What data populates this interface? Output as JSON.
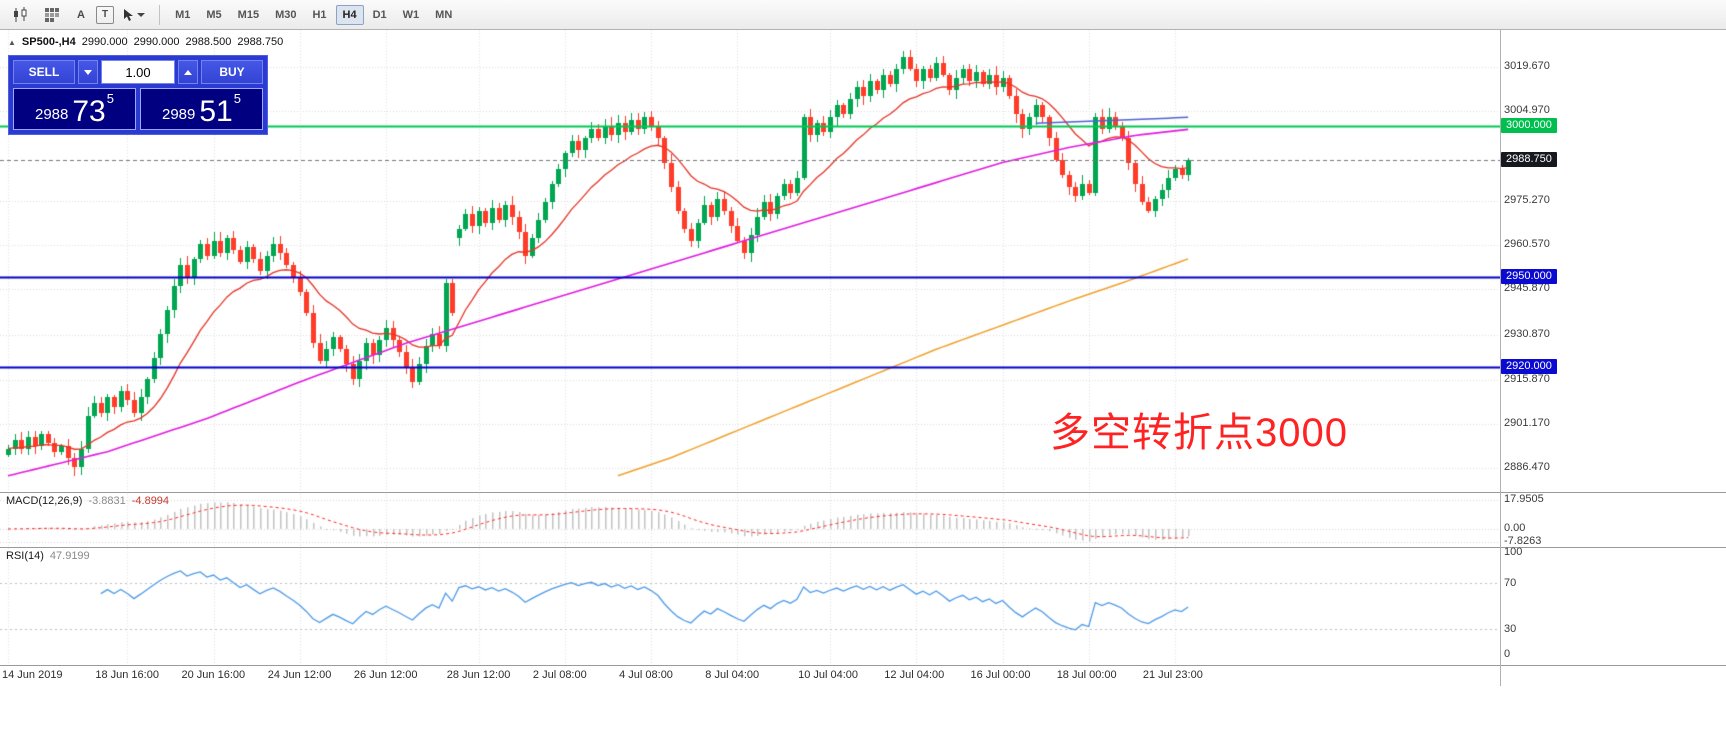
{
  "toolbar": {
    "icon_a_label": "A",
    "icon_t_label": "T",
    "timeframes": [
      "M1",
      "M5",
      "M15",
      "M30",
      "H1",
      "H4",
      "D1",
      "W1",
      "MN"
    ],
    "active_timeframe": "H4"
  },
  "chart": {
    "symbol_info": {
      "symbol": "SP500-,H4",
      "open": "2990.000",
      "high": "2990.000",
      "low": "2988.500",
      "close": "2988.750"
    },
    "trade_panel": {
      "sell_label": "SELL",
      "buy_label": "BUY",
      "volume": "1.00",
      "sell_price": {
        "prefix": "2988",
        "main": "73",
        "sup": "5"
      },
      "buy_price": {
        "prefix": "2989",
        "main": "51",
        "sup": "5"
      }
    },
    "annotation": {
      "text": "多空转折点3000",
      "color": "#ff2222"
    }
  },
  "macd_panel": {
    "title": "MACD(12,26,9)",
    "value1": "-3.8831",
    "value2": "-4.8994",
    "axis": [
      {
        "t": "17.9505",
        "v": 17.9505
      },
      {
        "t": "0.00",
        "v": 0
      },
      {
        "t": "-7.8263",
        "v": -7.8263
      }
    ]
  },
  "rsi_panel": {
    "title": "RSI(14)",
    "value": "47.9199",
    "axis": [
      {
        "t": "100",
        "v": 100
      },
      {
        "t": "70",
        "v": 70
      },
      {
        "t": "30",
        "v": 30
      },
      {
        "t": "0",
        "v": 0
      }
    ]
  },
  "chart_data": {
    "type": "candlestick",
    "symbol": "SP500-",
    "timeframe": "H4",
    "closes": [
      2893,
      2896,
      2893,
      2897,
      2894,
      2898,
      2895,
      2892,
      2894,
      2890,
      2887,
      2893,
      2904,
      2908,
      2905,
      2910,
      2907,
      2912,
      2909,
      2905,
      2910,
      2916,
      2923,
      2931,
      2939,
      2947,
      2954,
      2950,
      2956,
      2961,
      2957,
      2962,
      2958,
      2963,
      2959,
      2955,
      2960,
      2956,
      2952,
      2957,
      2961,
      2958,
      2954,
      2950,
      2945,
      2938,
      2928,
      2922,
      2926,
      2930,
      2926,
      2921,
      2916,
      2922,
      2928,
      2924,
      2929,
      2933,
      2929,
      2925,
      2920,
      2915,
      2921,
      2927,
      2931,
      2927,
      2948,
      2938,
      2966,
      2971,
      2967,
      2972,
      2968,
      2973,
      2969,
      2974,
      2970,
      2965,
      2957,
      2963,
      2969,
      2975,
      2981,
      2986,
      2991,
      2995,
      2992,
      2996,
      2999,
      2996,
      3000,
      2997,
      3001,
      2998,
      3002,
      2999,
      3003,
      3000,
      2996,
      2988,
      2980,
      2972,
      2966,
      2962,
      2968,
      2974,
      2970,
      2976,
      2972,
      2967,
      2962,
      2958,
      2964,
      2970,
      2975,
      2971,
      2977,
      2981,
      2978,
      2983,
      3003,
      2997,
      3001,
      2998,
      3003,
      3007,
      3004,
      3009,
      3013,
      3010,
      3015,
      3012,
      3017,
      3014,
      3019,
      3023,
      3019,
      3015,
      3019,
      3016,
      3021,
      3017,
      3012,
      3016,
      3019,
      3015,
      3018,
      3014,
      3017,
      3013,
      3016,
      3010,
      3004,
      2999,
      3003,
      3007,
      3003,
      2996,
      2989,
      2984,
      2980,
      2977,
      2981,
      2978,
      3003,
      2999,
      3003,
      3000,
      2996,
      2988,
      2981,
      2975,
      2972,
      2976,
      2979,
      2983,
      2986,
      2984,
      2988.75
    ],
    "open_overrides": {
      "68": 2963
    },
    "candle_colors": {
      "up": "#00a651",
      "down": "#ff3c28"
    },
    "time_axis": [
      {
        "label": "14 Jun 2019",
        "i": 0
      },
      {
        "label": "18 Jun 16:00",
        "i": 18
      },
      {
        "label": "20 Jun 16:00",
        "i": 31
      },
      {
        "label": "24 Jun 12:00",
        "i": 44
      },
      {
        "label": "26 Jun 12:00",
        "i": 57
      },
      {
        "label": "28 Jun 12:00",
        "i": 71
      },
      {
        "label": "2 Jul 08:00",
        "i": 84
      },
      {
        "label": "4 Jul 08:00",
        "i": 97
      },
      {
        "label": "8 Jul 04:00",
        "i": 110
      },
      {
        "label": "10 Jul 04:00",
        "i": 124
      },
      {
        "label": "12 Jul 04:00",
        "i": 137
      },
      {
        "label": "16 Jul 00:00",
        "i": 150
      },
      {
        "label": "18 Jul 00:00",
        "i": 163
      },
      {
        "label": "21 Jul 23:00",
        "i": 176
      }
    ],
    "price_axis": {
      "labels": [
        {
          "t": "3019.670",
          "p": 3019.67
        },
        {
          "t": "3004.970",
          "p": 3004.97
        },
        {
          "t": "2975.270",
          "p": 2975.27
        },
        {
          "t": "2960.570",
          "p": 2960.57
        },
        {
          "t": "2945.870",
          "p": 2945.87
        },
        {
          "t": "2930.870",
          "p": 2930.87
        },
        {
          "t": "2915.870",
          "p": 2915.87
        },
        {
          "t": "2901.170",
          "p": 2901.17
        },
        {
          "t": "2886.470",
          "p": 2886.47
        }
      ],
      "badges": [
        {
          "t": "3000.000",
          "p": 3000,
          "bg": "#00bf4e"
        },
        {
          "t": "2988.750",
          "p": 2988.75,
          "bg": "#15181f"
        },
        {
          "t": "2950.000",
          "p": 2950,
          "bg": "#0a0ad0"
        },
        {
          "t": "2920.000",
          "p": 2920,
          "bg": "#0a0ad0"
        }
      ]
    },
    "hlines": [
      {
        "price": 3000,
        "color": "#00c853",
        "width": 2
      },
      {
        "price": 2950,
        "color": "#0000c8",
        "width": 2
      },
      {
        "price": 2920,
        "color": "#0000c8",
        "width": 2
      }
    ],
    "current_price": {
      "price": 2988.75,
      "label": "2988.750"
    },
    "ma_lines": [
      {
        "name": "fast-ma",
        "color": "#e53528",
        "kind": "ema",
        "period": 16,
        "width": 1.3
      },
      {
        "name": "mid-ma",
        "color": "#df1edf",
        "kind": "ctrl",
        "width": 1.6,
        "points": [
          [
            0,
            2884
          ],
          [
            15,
            2892
          ],
          [
            30,
            2903
          ],
          [
            45,
            2916
          ],
          [
            60,
            2928
          ],
          [
            75,
            2938
          ],
          [
            90,
            2948
          ],
          [
            105,
            2958
          ],
          [
            120,
            2968
          ],
          [
            135,
            2978
          ],
          [
            150,
            2988
          ],
          [
            160,
            2993
          ],
          [
            170,
            2997
          ],
          [
            178,
            2999
          ]
        ]
      },
      {
        "name": "slow-ma",
        "color": "#f0a22e",
        "kind": "ctrl",
        "width": 1.5,
        "points": [
          [
            92,
            2884
          ],
          [
            100,
            2890
          ],
          [
            110,
            2899
          ],
          [
            120,
            2908
          ],
          [
            130,
            2917
          ],
          [
            140,
            2926
          ],
          [
            150,
            2934
          ],
          [
            160,
            2942
          ],
          [
            168,
            2948
          ],
          [
            178,
            2956
          ]
        ]
      },
      {
        "name": "flat-blue-line",
        "color": "#4f63d2",
        "kind": "ctrl",
        "width": 1.5,
        "points": [
          [
            155,
            3001
          ],
          [
            178,
            3003
          ]
        ]
      }
    ],
    "macd": {
      "fast": 12,
      "slow": 26,
      "signal": 9,
      "hist_color": "#c4c4c4",
      "signal_color": "#ff2a2a",
      "range": [
        -10.5,
        21.5
      ]
    },
    "rsi": {
      "period": 14,
      "color": "#4f9be8",
      "levels": [
        70,
        30
      ],
      "range": [
        0,
        100
      ]
    }
  }
}
